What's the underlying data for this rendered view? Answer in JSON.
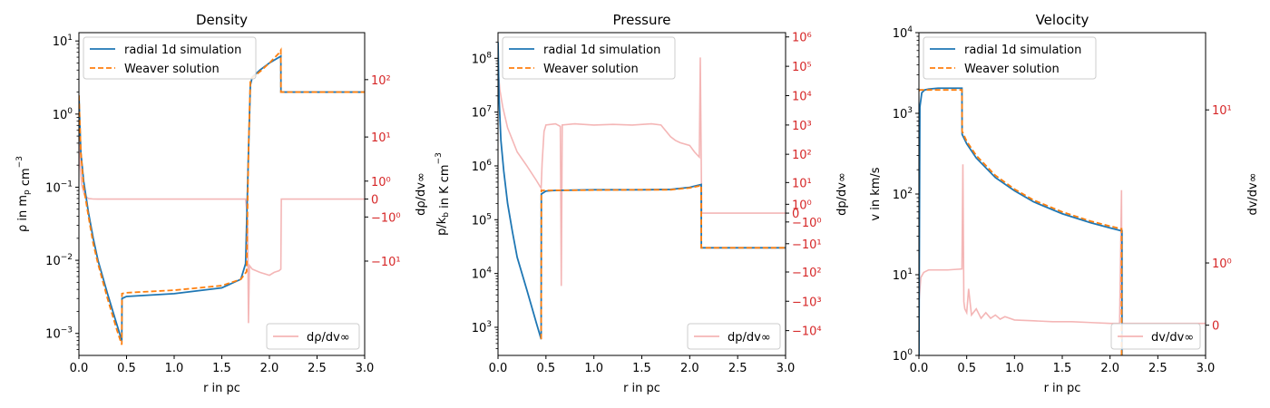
{
  "colors": {
    "simulation": "#1f77b4",
    "weaver": "#ff7f0e",
    "derivative": "#f4b6b6",
    "right_axis": "#d62728",
    "axis": "#000000",
    "background": "#ffffff"
  },
  "chart_data": [
    {
      "type": "line",
      "title": "Density",
      "xlabel": "r in pc",
      "ylabel": "ρ in m_p cm^-3",
      "y2label": "dρ/dv∞",
      "xlim": [
        0,
        3
      ],
      "ylim": [
        0.0005,
        13
      ],
      "yscale": "log",
      "y2scale": "symlog",
      "y2lim": [
        -420,
        620
      ],
      "grid": false,
      "legend_placement": "upper-left",
      "legend2_placement": "lower-right",
      "x_ticks": [
        "0.0",
        "0.5",
        "1.0",
        "1.5",
        "2.0",
        "2.5",
        "3.0"
      ],
      "y_ticks": [
        {
          "value": 0.001,
          "base": "10",
          "exp": "−3"
        },
        {
          "value": 0.01,
          "base": "10",
          "exp": "−2"
        },
        {
          "value": 0.1,
          "base": "10",
          "exp": "−1"
        },
        {
          "value": 1,
          "base": "10",
          "exp": "0"
        },
        {
          "value": 10,
          "base": "10",
          "exp": "1"
        }
      ],
      "y2_ticks": [
        {
          "value": -10,
          "label": "−10¹"
        },
        {
          "value": -1,
          "label": "−10⁰"
        },
        {
          "value": 0,
          "label": "0"
        },
        {
          "value": 1,
          "label": "10⁰"
        },
        {
          "value": 10,
          "label": "10¹"
        },
        {
          "value": 100,
          "label": "10²"
        }
      ],
      "series": [
        {
          "name": "radial 1d simulation",
          "axis": "left",
          "style": "solid",
          "color": "#1f77b4",
          "x": [
            0.0,
            0.02,
            0.05,
            0.1,
            0.15,
            0.2,
            0.3,
            0.4,
            0.45,
            0.452,
            0.5,
            1.0,
            1.5,
            1.7,
            1.75,
            1.78,
            1.8,
            1.82,
            1.9,
            2.0,
            2.12,
            2.121,
            3.0
          ],
          "y": [
            1.8,
            0.3,
            0.12,
            0.045,
            0.02,
            0.01,
            0.0035,
            0.0013,
            0.0008,
            0.003,
            0.0032,
            0.0035,
            0.0042,
            0.0055,
            0.009,
            0.3,
            2.5,
            3.2,
            4.0,
            5.0,
            6.2,
            2.0,
            2.0
          ]
        },
        {
          "name": "Weaver solution",
          "axis": "left",
          "style": "dashed",
          "color": "#ff7f0e",
          "x": [
            0.0,
            0.02,
            0.05,
            0.1,
            0.15,
            0.2,
            0.3,
            0.4,
            0.45,
            0.452,
            0.5,
            1.0,
            1.5,
            1.7,
            1.76,
            1.78,
            1.8,
            1.9,
            2.0,
            2.1,
            2.12,
            2.121,
            3.0
          ],
          "y": [
            1.8,
            0.3,
            0.1,
            0.04,
            0.017,
            0.009,
            0.003,
            0.0011,
            0.0007,
            0.0035,
            0.0036,
            0.0039,
            0.0045,
            0.0055,
            0.007,
            0.3,
            3.0,
            3.8,
            5.0,
            6.8,
            7.5,
            2.0,
            2.0
          ]
        },
        {
          "name": "dρ/dv∞",
          "axis": "right",
          "style": "solid",
          "color": "#f4b6b6",
          "x": [
            0.0,
            0.01,
            0.03,
            0.06,
            0.1,
            0.15,
            0.2,
            1.75,
            1.77,
            1.78,
            1.79,
            1.82,
            1.9,
            2.0,
            2.05,
            2.1,
            2.12,
            2.125,
            3.0
          ],
          "y": [
            40,
            3,
            0.7,
            0.15,
            0.02,
            0.002,
            0,
            0,
            -1,
            -120,
            -12,
            -14,
            -16,
            -18,
            -16,
            -15,
            -14,
            0,
            0
          ]
        }
      ]
    },
    {
      "type": "line",
      "title": "Pressure",
      "xlabel": "r in pc",
      "ylabel": "p/k_b in K cm^-3",
      "y2label": "dp/dv∞",
      "xlim": [
        0,
        3
      ],
      "ylim": [
        300,
        300000000
      ],
      "yscale": "log",
      "y2scale": "symlog",
      "y2lim": [
        -70000,
        1400000
      ],
      "grid": false,
      "legend_placement": "upper-left",
      "legend2_placement": "lower-right",
      "x_ticks": [
        "0.0",
        "0.5",
        "1.0",
        "1.5",
        "2.0",
        "2.5",
        "3.0"
      ],
      "y_ticks": [
        {
          "value": 1000,
          "base": "10",
          "exp": "3"
        },
        {
          "value": 10000,
          "base": "10",
          "exp": "4"
        },
        {
          "value": 100000,
          "base": "10",
          "exp": "5"
        },
        {
          "value": 1000000,
          "base": "10",
          "exp": "6"
        },
        {
          "value": 10000000,
          "base": "10",
          "exp": "7"
        },
        {
          "value": 100000000,
          "base": "10",
          "exp": "8"
        }
      ],
      "y2_ticks": [
        {
          "value": -10000,
          "label": "−10⁴"
        },
        {
          "value": -1000,
          "label": "−10³"
        },
        {
          "value": -100,
          "label": "−10²"
        },
        {
          "value": -10,
          "label": "−10¹"
        },
        {
          "value": -1,
          "label": "−10⁰"
        },
        {
          "value": 0,
          "label": "0"
        },
        {
          "value": 1,
          "label": "10⁰"
        },
        {
          "value": 10,
          "label": "10¹"
        },
        {
          "value": 100,
          "label": "10²"
        },
        {
          "value": 1000,
          "label": "10³"
        },
        {
          "value": 10000,
          "label": "10⁴"
        },
        {
          "value": 100000,
          "label": "10⁵"
        },
        {
          "value": 1000000,
          "label": "10⁶"
        }
      ],
      "series": [
        {
          "name": "radial 1d simulation",
          "axis": "left",
          "style": "solid",
          "color": "#1f77b4",
          "x": [
            0.0,
            0.01,
            0.03,
            0.06,
            0.1,
            0.15,
            0.2,
            0.3,
            0.4,
            0.45,
            0.452,
            0.5,
            0.6,
            1.0,
            1.5,
            1.8,
            2.0,
            2.12,
            2.121,
            3.0
          ],
          "y": [
            200000000,
            20000000,
            3000000,
            800000,
            200000,
            60000,
            20000,
            5000,
            1200,
            600,
            300000,
            340000,
            350000,
            360000,
            360000,
            365000,
            400000,
            450000,
            30000,
            30000
          ]
        },
        {
          "name": "Weaver solution",
          "axis": "left",
          "style": "dashed",
          "color": "#ff7f0e",
          "x": [
            0.45,
            0.452,
            0.5,
            1.0,
            1.5,
            1.8,
            2.0,
            2.12,
            2.121,
            3.0
          ],
          "y": [
            600,
            350000,
            350000,
            355000,
            360000,
            360000,
            390000,
            430000,
            30000,
            30000
          ]
        },
        {
          "name": "dp/dv∞",
          "axis": "right",
          "style": "solid",
          "color": "#f4b6b6",
          "x": [
            0.0,
            0.02,
            0.05,
            0.1,
            0.2,
            0.3,
            0.4,
            0.45,
            0.46,
            0.48,
            0.5,
            0.6,
            0.65,
            0.66,
            0.67,
            0.8,
            1.0,
            1.2,
            1.4,
            1.6,
            1.7,
            1.8,
            1.85,
            1.9,
            2.0,
            2.05,
            2.1,
            2.11,
            2.12,
            2.125,
            3.0
          ],
          "y": [
            80000,
            15000,
            4000,
            800,
            120,
            40,
            12,
            6,
            50,
            600,
            1000,
            1100,
            900,
            -300,
            1000,
            1100,
            1000,
            1050,
            1000,
            1100,
            1000,
            400,
            300,
            250,
            200,
            120,
            80,
            200000,
            60,
            0,
            0
          ]
        }
      ]
    },
    {
      "type": "line",
      "title": "Velocity",
      "xlabel": "r in pc",
      "ylabel": "v in km/s",
      "y2label": "dv/dv∞",
      "xlim": [
        0,
        3
      ],
      "ylim": [
        1,
        10000
      ],
      "yscale": "log",
      "y2scale": "symlog",
      "y2lim": [
        -0.4,
        25
      ],
      "grid": false,
      "legend_placement": "upper-left",
      "legend2_placement": "lower-right",
      "x_ticks": [
        "0.0",
        "0.5",
        "1.0",
        "1.5",
        "2.0",
        "2.5",
        "3.0"
      ],
      "y_ticks": [
        {
          "value": 1,
          "base": "10",
          "exp": "0"
        },
        {
          "value": 10,
          "base": "10",
          "exp": "1"
        },
        {
          "value": 100,
          "base": "10",
          "exp": "2"
        },
        {
          "value": 1000,
          "base": "10",
          "exp": "3"
        },
        {
          "value": 10000,
          "base": "10",
          "exp": "4"
        }
      ],
      "y2_ticks": [
        {
          "value": 0,
          "label": "0"
        },
        {
          "value": 1,
          "label": "10⁰"
        },
        {
          "value": 10,
          "label": "10¹"
        }
      ],
      "series": [
        {
          "name": "radial 1d simulation",
          "axis": "left",
          "style": "solid",
          "color": "#1f77b4",
          "x": [
            0.0,
            0.01,
            0.03,
            0.06,
            0.1,
            0.2,
            0.3,
            0.45,
            0.452,
            0.5,
            0.6,
            0.8,
            1.0,
            1.2,
            1.5,
            1.8,
            2.0,
            2.12,
            2.125,
            2.125
          ],
          "y": [
            1,
            1200,
            1800,
            1950,
            2000,
            2050,
            2050,
            2050,
            550,
            420,
            280,
            160,
            110,
            80,
            57,
            44,
            38,
            35,
            35,
            1
          ]
        },
        {
          "name": "Weaver solution",
          "axis": "left",
          "style": "dashed",
          "color": "#ff7f0e",
          "x": [
            0.0,
            0.01,
            0.45,
            0.452,
            0.5,
            0.6,
            0.8,
            1.0,
            1.2,
            1.5,
            1.8,
            2.0,
            2.12,
            2.121,
            2.121
          ],
          "y": [
            1900,
            1950,
            1950,
            600,
            450,
            300,
            170,
            115,
            84,
            60,
            46,
            40,
            37,
            37,
            1
          ]
        },
        {
          "name": "dv/dv∞",
          "axis": "right",
          "style": "solid",
          "color": "#f4b6b6",
          "x": [
            0.0,
            0.02,
            0.05,
            0.1,
            0.2,
            0.3,
            0.45,
            0.46,
            0.47,
            0.48,
            0.5,
            0.52,
            0.55,
            0.6,
            0.65,
            0.7,
            0.75,
            0.8,
            0.85,
            0.9,
            1.0,
            1.2,
            1.4,
            1.6,
            1.8,
            2.0,
            2.1,
            2.12,
            2.125,
            2.13,
            3.0
          ],
          "y": [
            0.3,
            0.7,
            0.8,
            0.85,
            0.85,
            0.85,
            0.87,
            5,
            0.3,
            0.2,
            0.15,
            0.5,
            0.12,
            0.2,
            0.08,
            0.15,
            0.08,
            0.12,
            0.07,
            0.1,
            0.06,
            0.05,
            0.04,
            0.04,
            0.03,
            0.02,
            0.02,
            3.5,
            0,
            0.02,
            0.02
          ]
        }
      ]
    }
  ]
}
